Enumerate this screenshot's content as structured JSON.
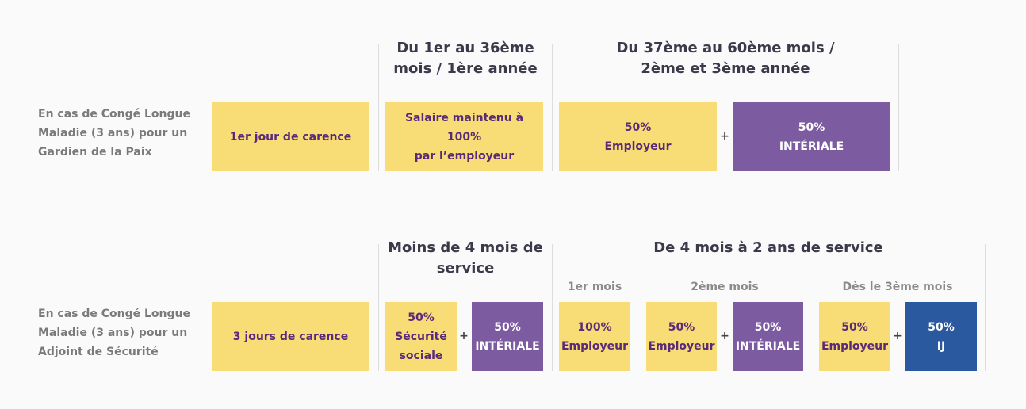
{
  "section1": {
    "row_label": "En cas de Congé Longue\nMaladie (3 ans) pour un\nGardien de la Paix",
    "header_1": "Du 1er au 36ème\nmois / 1ère année",
    "header_2": "Du 37ème au 60ème mois /\n2ème et 3ème  année",
    "box_carence": "1er jour de carence",
    "box_salaire": "Salaire maintenu à 100%\npar l’employeur",
    "box_employeur": "50%\nEmployeur",
    "plus": "+",
    "box_interiale": "50%\nINTÉRIALE"
  },
  "section2": {
    "row_label": "En cas de Congé Longue\nMaladie (3 ans) pour un\nAdjoint  de Sécurité",
    "header_1": "Moins de 4 mois de\nservice",
    "header_2": "De 4 mois à 2 ans de service",
    "sub_1": "1er mois",
    "sub_2": "2ème mois",
    "sub_3": "Dès le 3ème mois",
    "box_carence": "3 jours de carence",
    "box_secu": "50%\nSécurité\nsociale",
    "plus": "+",
    "box_interiale_a": "50%\nINTÉRIALE",
    "box_employeur_100": "100%\nEmployeur",
    "box_employeur_b": "50%\nEmployeur",
    "box_interiale_b": "50%\nINTÉRIALE",
    "box_employeur_c": "50%\nEmployeur",
    "box_ij": "50%\nIJ"
  }
}
